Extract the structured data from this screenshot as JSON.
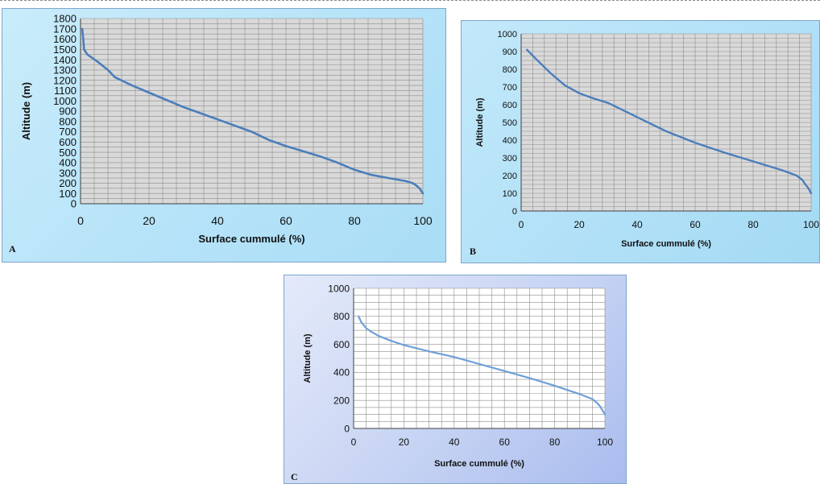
{
  "chart_data": [
    {
      "panel_label": "A",
      "type": "line",
      "xlabel": "Surface cummulé (%)",
      "ylabel": "Altitude (m)",
      "xlim": [
        0,
        100
      ],
      "ylim": [
        0,
        1800
      ],
      "x_ticks": [
        0,
        20,
        40,
        60,
        80,
        100
      ],
      "y_ticks": [
        0,
        100,
        200,
        300,
        400,
        500,
        600,
        700,
        800,
        900,
        1000,
        1100,
        1200,
        1300,
        1400,
        1500,
        1600,
        1700,
        1800
      ],
      "grid": true,
      "line_color": "#4a7ebb",
      "series": [
        {
          "x": [
            0.5,
            0.8,
            1,
            2,
            5,
            8,
            10,
            15,
            20,
            30,
            40,
            50,
            55,
            60,
            70,
            75,
            80,
            85,
            90,
            95,
            97,
            98,
            99,
            100
          ],
          "y": [
            1700,
            1600,
            1500,
            1450,
            1380,
            1300,
            1230,
            1150,
            1080,
            940,
            820,
            700,
            620,
            560,
            460,
            400,
            330,
            280,
            250,
            220,
            200,
            180,
            150,
            100
          ]
        }
      ]
    },
    {
      "panel_label": "B",
      "type": "line",
      "xlabel": "Surface cummulé (%)",
      "ylabel": "Altitude (m)",
      "xlim": [
        0,
        100
      ],
      "ylim": [
        0,
        1000
      ],
      "x_ticks": [
        0,
        20,
        40,
        60,
        80,
        100
      ],
      "y_ticks": [
        0,
        100,
        200,
        300,
        400,
        500,
        600,
        700,
        800,
        900,
        1000
      ],
      "grid": true,
      "line_color": "#4a7ebb",
      "series": [
        {
          "x": [
            2,
            5,
            10,
            15,
            20,
            25,
            30,
            40,
            50,
            60,
            70,
            80,
            90,
            95,
            97,
            98,
            99,
            100
          ],
          "y": [
            910,
            860,
            780,
            710,
            665,
            635,
            610,
            530,
            450,
            385,
            330,
            280,
            230,
            200,
            175,
            150,
            130,
            100
          ]
        }
      ]
    },
    {
      "panel_label": "C",
      "type": "line",
      "xlabel": "Surface cummulé (%)",
      "ylabel": "Altitude (m)",
      "xlim": [
        0,
        100
      ],
      "ylim": [
        0,
        1000
      ],
      "x_ticks": [
        0,
        20,
        40,
        60,
        80,
        100
      ],
      "y_ticks": [
        0,
        200,
        400,
        600,
        800,
        1000
      ],
      "grid": true,
      "line_color": "#6f9fd8",
      "series": [
        {
          "x": [
            2,
            3,
            5,
            7,
            10,
            15,
            20,
            30,
            40,
            50,
            60,
            70,
            80,
            90,
            95,
            97,
            98,
            99,
            100
          ],
          "y": [
            800,
            760,
            715,
            690,
            660,
            625,
            595,
            550,
            510,
            460,
            410,
            360,
            305,
            245,
            210,
            180,
            160,
            130,
            100
          ]
        }
      ]
    }
  ]
}
